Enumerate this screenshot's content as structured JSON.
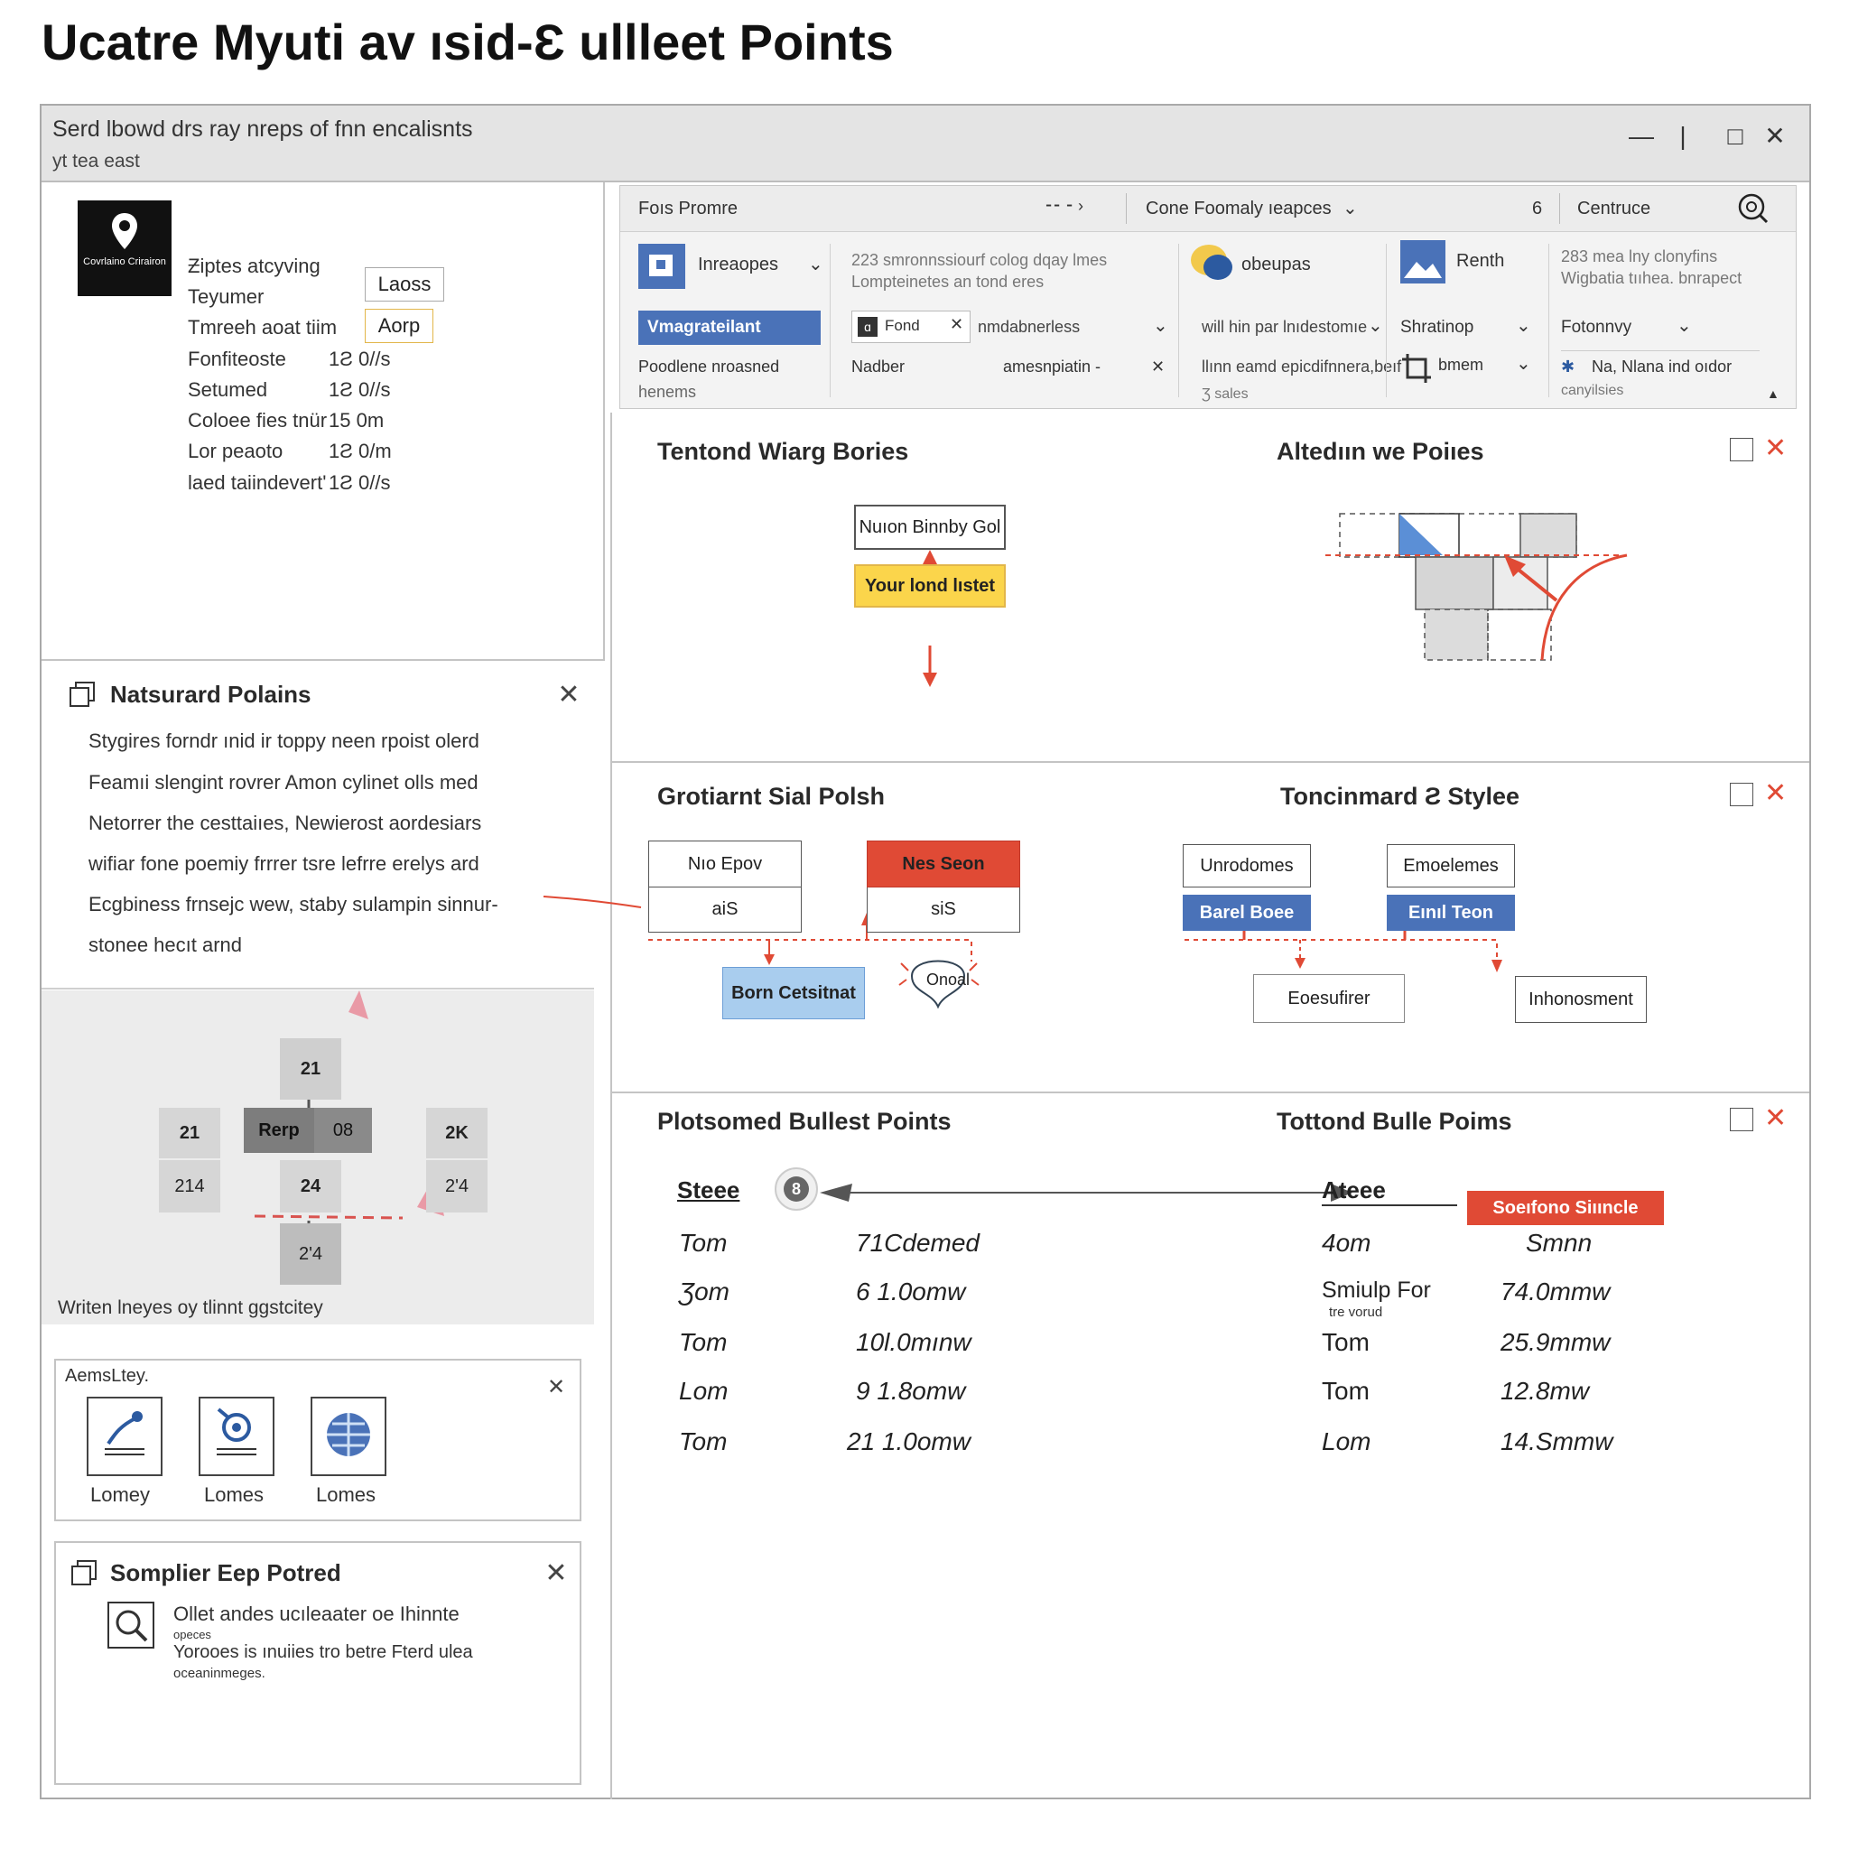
{
  "page_title": "Ucatre Myuti av ısid-Ɛ ullleet Points",
  "window": {
    "title_line1": "Serd lbowd drs ray nreps of fnn encalisnts",
    "title_line2": "yt tea east",
    "controls": [
      "—",
      "|",
      "□",
      "✕"
    ]
  },
  "properties_panel": {
    "logo_text": "Covrlaino Crirairon",
    "rows": [
      {
        "label": "Ƶiptes atcyving",
        "value": ""
      },
      {
        "label": "Teyumer",
        "value": ""
      },
      {
        "label": "Tmreeh aoat tiim",
        "value": ""
      },
      {
        "label": "Fonfiteoste",
        "value": "1Ƨ 0//s"
      },
      {
        "label": "Setumed",
        "value": "1Ƨ 0//s"
      },
      {
        "label": "Coloee fies tnür",
        "value": "15 0m"
      },
      {
        "label": "Lor peaoto",
        "value": "1Ƨ 0/m"
      },
      {
        "label": "laed taiindevert'",
        "value": "1Ƨ 0//s"
      }
    ],
    "button1": "Laoss",
    "button2": "Aorp"
  },
  "notes_panel": {
    "title": "Natsurard Polains",
    "lines": [
      "Stygires forndr ınid ir toppy neen rpoist olerd",
      "Feamıi slengint rovrer Amon cylinet olls med",
      "Netorrer the cesttaiıes, Newierost aordesiars",
      "wifiar fone poemiy frrrer tsre lefrre erelys ard",
      "Ecgbiness frnsejc wew, staby sulampin sinnur-",
      "stonee hecıt arnd"
    ]
  },
  "grid_diagram": {
    "cells": [
      "21",
      "21",
      "Rerp",
      "08",
      "2K",
      "214",
      "24",
      "2'4",
      "2'4"
    ],
    "caption": "Writen lneyes oy tlinnt ggstcitey"
  },
  "assets_panel": {
    "title": "AemsLtey.",
    "items": [
      {
        "label": "Lomey",
        "icon": "pen-tool-icon"
      },
      {
        "label": "Lomes",
        "icon": "target-icon"
      },
      {
        "label": "Lomes",
        "icon": "globe-icon"
      }
    ]
  },
  "sampler_panel": {
    "title": "Somplier Eep Potred",
    "line1": "Ollet andes ucıleaater oe Ihinnte",
    "line1_sub": "opeces",
    "line2": "Yorooes is ınuiies tro betre Fterd ulea",
    "line2_sub": "oceaninmeges."
  },
  "ribbon": {
    "top": {
      "font_label": "Foıs Promre",
      "middle_label": "Cone Foomaly ıeapces",
      "right_label": "Centruce",
      "small_num": "6"
    },
    "groups": {
      "g1_label": "Inreaopes",
      "g1_button": "Vmagrateilant",
      "g1_row3": "Poodlene nroasned",
      "g1_row3b": "henems",
      "g2_line1": "223 smronnssiourf colog dqay lmes",
      "g2_line2": "Lompteinetes   an tond eres",
      "g2_font": "Fond",
      "g2_font2": "nmdabnerless",
      "g2_row3": "Nadber",
      "g2_row3b": "amesnpiatin -",
      "g3_label": "obeupas",
      "g3_row2": "will hin par lnıdestomıe",
      "g3_row3": "llınn eamd epicdifnnera,beıf",
      "g3_row4": "Ʒ sales",
      "g4_label": "Renth",
      "g4_row2": "Shratinop",
      "g4_row3": "bmem",
      "g5_line1": "283 mea lny clonyfins",
      "g5_line2": "Wigbatia tııhea. bnrapect",
      "g5_row2": "Fotonnvy",
      "g5_row3": "Na, Nlana ind oıdor",
      "g5_row3b": "canyilsies"
    }
  },
  "section1": {
    "left_title": "Tentond Wiarg Bories",
    "right_title": "Altedıın we Poiıes",
    "box_top": "Nuıon Binnby Gol",
    "box_yellow": "Your lond lıstet"
  },
  "section2": {
    "left_title": "Grotiarnt Sial Polsh",
    "right_title": "Toncinmard Ƨ Styleе",
    "l_box1_top": "Nıo Epov",
    "l_box1_bottom": "aiS",
    "l_box2_top": "Nes Seon",
    "l_box2_bottom": "siS",
    "l_blue_box": "Born Cetsitnat",
    "l_oval": "Onoal",
    "r_box1": "Unrodomes",
    "r_box1_btn": "Barel Boee",
    "r_box2": "Emoelemes",
    "r_box2_btn": "Eınıl Teon",
    "r_box3": "Eoesufirer",
    "r_box4": "Inhonosment"
  },
  "section3": {
    "left_title": "Plotsomed Bullest Points",
    "right_title": "Tottond Bulle Poims",
    "left_header": "Steee",
    "left_badge": "8",
    "right_header": "Ateee",
    "right_tag": "Soeıfono Siııncle",
    "left_rows": [
      [
        "Tom",
        "71Cdemed"
      ],
      [
        "Ʒom",
        "6 1.0omw"
      ],
      [
        "Tom",
        "10l.0mınw"
      ],
      [
        "Lom",
        "9 1.8omw"
      ],
      [
        "Tom",
        "21 1.0omw"
      ]
    ],
    "right_rows": [
      [
        "4om",
        "Smnn"
      ],
      [
        "Smiulp For",
        "74.0mmw"
      ],
      [
        "Tom",
        "25.9mmw"
      ],
      [
        "Tom",
        "12.8mw"
      ],
      [
        "Lom",
        "14.Smmw"
      ]
    ],
    "right_row2_sub": "tre vorud"
  },
  "colors": {
    "accent_blue": "#4a72b8",
    "accent_red": "#e04a35",
    "accent_yellow": "#fbd54b",
    "light_blue": "#a9cdee"
  }
}
